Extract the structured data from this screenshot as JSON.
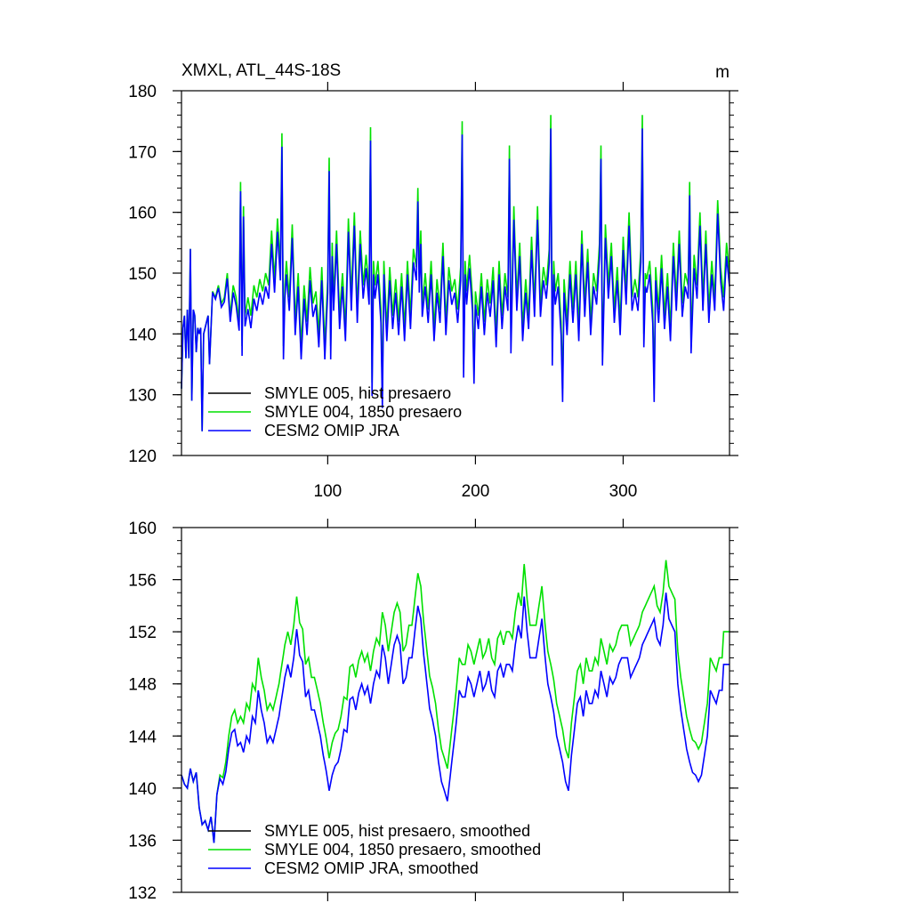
{
  "chart_data": [
    {
      "type": "line",
      "title": "XMXL, ATL_44S-18S",
      "units": "m",
      "ylim": [
        120,
        180
      ],
      "xlim": [
        1,
        372
      ],
      "y_ticks": [
        120,
        130,
        140,
        150,
        160,
        170,
        180
      ],
      "x_ticks": [
        100,
        200,
        300
      ],
      "legend_position": "bottom-left",
      "series": [
        {
          "name": "SMYLE 005, hist presaero",
          "color": "#000000"
        },
        {
          "name": "SMYLE 004, 1850 presaero",
          "color": "#00e000"
        },
        {
          "name": "CESM2 OMIP JRA",
          "color": "#0000ff"
        }
      ],
      "anchors": {
        "x": [
          1,
          2,
          3,
          4,
          5,
          6,
          7,
          8,
          9,
          10,
          11,
          12,
          13,
          14,
          15,
          16,
          17,
          18,
          19,
          20,
          22,
          24,
          26,
          28,
          30,
          32,
          34,
          36,
          38,
          40,
          41,
          42,
          43,
          44,
          46,
          48,
          50,
          52,
          54,
          56,
          58,
          60,
          62,
          64,
          66,
          68,
          69,
          70,
          71,
          72,
          74,
          76,
          78,
          80,
          82,
          84,
          86,
          88,
          90,
          92,
          94,
          96,
          98,
          100,
          101,
          102,
          103,
          104,
          106,
          108,
          110,
          112,
          114,
          116,
          118,
          120,
          122,
          124,
          126,
          128,
          129,
          130,
          131,
          132,
          134,
          136,
          137,
          138,
          140,
          142,
          144,
          146,
          148,
          150,
          152,
          154,
          156,
          158,
          160,
          161,
          162,
          163,
          164,
          166,
          168,
          170,
          172,
          174,
          176,
          178,
          180,
          182,
          184,
          186,
          188,
          190,
          191,
          192,
          193,
          194,
          196,
          198,
          199,
          200,
          202,
          204,
          206,
          208,
          210,
          212,
          214,
          216,
          218,
          220,
          222,
          223,
          224,
          226,
          228,
          230,
          232,
          234,
          236,
          238,
          240,
          242,
          244,
          246,
          248,
          250,
          251,
          252,
          253,
          254,
          256,
          258,
          259,
          260,
          262,
          264,
          266,
          268,
          270,
          272,
          274,
          276,
          278,
          280,
          282,
          284,
          285,
          286,
          288,
          290,
          292,
          294,
          296,
          298,
          300,
          302,
          304,
          306,
          308,
          310,
          312,
          313,
          314,
          315,
          316,
          318,
          320,
          321,
          322,
          324,
          326,
          328,
          330,
          332,
          334,
          336,
          338,
          340,
          342,
          344,
          345,
          346,
          348,
          350,
          352,
          354,
          356,
          358,
          360,
          362,
          364,
          366,
          368,
          370,
          372
        ],
        "green": [
          131,
          141,
          143,
          136,
          144,
          136,
          154,
          129,
          144,
          143,
          137,
          141,
          140,
          141,
          124,
          140,
          141,
          142,
          143,
          135,
          147,
          146,
          148,
          145,
          146,
          150,
          143,
          148,
          146,
          142,
          165,
          138,
          161,
          143,
          146,
          143,
          148,
          146,
          149,
          147,
          150,
          148,
          157,
          149,
          159,
          151,
          173,
          138,
          148,
          152,
          146,
          158,
          142,
          150,
          138,
          148,
          142,
          151,
          145,
          147,
          140,
          151,
          138,
          149,
          169,
          138,
          155,
          146,
          157,
          143,
          150,
          141,
          159,
          146,
          160,
          144,
          157,
          148,
          153,
          147,
          174,
          132,
          152,
          148,
          152,
          144,
          130,
          152,
          141,
          151,
          143,
          149,
          142,
          150,
          141,
          152,
          143,
          154,
          151,
          164,
          149,
          157,
          145,
          150,
          144,
          152,
          141,
          149,
          144,
          155,
          142,
          151,
          147,
          149,
          144,
          151,
          175,
          135,
          152,
          147,
          153,
          146,
          134,
          147,
          143,
          150,
          142,
          149,
          145,
          151,
          140,
          152,
          143,
          150,
          146,
          171,
          139,
          161,
          146,
          155,
          141,
          149,
          143,
          156,
          145,
          161,
          145,
          151,
          148,
          154,
          176,
          137,
          152,
          147,
          150,
          142,
          131,
          149,
          142,
          152,
          144,
          152,
          141,
          157,
          145,
          154,
          142,
          150,
          147,
          155,
          171,
          137,
          158,
          148,
          155,
          144,
          151,
          142,
          156,
          147,
          160,
          146,
          149,
          146,
          154,
          176,
          140,
          150,
          149,
          152,
          144,
          131,
          151,
          144,
          153,
          143,
          150,
          141,
          155,
          146,
          157,
          145,
          150,
          148,
          165,
          139,
          153,
          148,
          160,
          146,
          157,
          144,
          152,
          146,
          162,
          151,
          146,
          155,
          150
        ]
      },
      "fine_structure": {
        "green_offset_over_blue": -2.2
      },
      "legend": {
        "entries": [
          "SMYLE 005, hist presaero",
          "SMYLE 004, 1850 presaero",
          "CESM2 OMIP JRA"
        ]
      }
    },
    {
      "type": "line",
      "title": "",
      "units": "",
      "ylim": [
        132,
        160
      ],
      "xlim": [
        1,
        372
      ],
      "y_ticks": [
        132,
        136,
        140,
        144,
        148,
        152,
        156,
        160
      ],
      "x_ticks": [
        100,
        200,
        300
      ],
      "legend_position": "bottom-left",
      "series": [
        {
          "name": "SMYLE 005, hist presaero, smoothed",
          "color": "#000000"
        },
        {
          "name": "SMYLE 004, 1850 presaero, smoothed",
          "color": "#00e000"
        },
        {
          "name": "CESM2 OMIP JRA, smoothed",
          "color": "#0000ff"
        }
      ],
      "anchors": {
        "x": [
          1,
          3,
          5,
          7,
          9,
          11,
          13,
          15,
          17,
          19,
          21,
          23,
          25,
          27,
          29,
          31,
          33,
          35,
          37,
          39,
          41,
          43,
          45,
          47,
          49,
          51,
          53,
          55,
          57,
          59,
          61,
          63,
          65,
          67,
          69,
          71,
          73,
          75,
          77,
          79,
          81,
          83,
          85,
          87,
          89,
          91,
          93,
          95,
          97,
          99,
          101,
          103,
          105,
          107,
          109,
          111,
          113,
          115,
          117,
          119,
          121,
          123,
          125,
          127,
          129,
          131,
          133,
          135,
          137,
          139,
          141,
          143,
          145,
          147,
          149,
          151,
          153,
          155,
          157,
          159,
          161,
          163,
          165,
          167,
          169,
          171,
          173,
          175,
          177,
          179,
          181,
          183,
          185,
          187,
          189,
          191,
          193,
          195,
          197,
          199,
          201,
          203,
          205,
          207,
          209,
          211,
          213,
          215,
          217,
          219,
          221,
          223,
          225,
          227,
          229,
          231,
          233,
          235,
          237,
          239,
          241,
          243,
          245,
          247,
          249,
          251,
          253,
          255,
          257,
          259,
          261,
          263,
          265,
          267,
          269,
          271,
          273,
          275,
          277,
          279,
          281,
          283,
          285,
          287,
          289,
          291,
          293,
          295,
          297,
          299,
          301,
          303,
          305,
          307,
          309,
          311,
          313,
          315,
          317,
          319,
          321,
          323,
          325,
          327,
          329,
          331,
          333,
          335,
          337,
          339,
          341,
          343,
          345,
          347,
          349,
          351,
          353,
          355,
          357,
          359,
          361,
          363,
          365,
          367
        ],
        "green": [
          141,
          140.3,
          140,
          141.5,
          140.5,
          141.2,
          138.5,
          137.2,
          137.5,
          136.8,
          137.8,
          135.8,
          139.5,
          141,
          140.8,
          142,
          144,
          145.5,
          146,
          145,
          145.5,
          145,
          146.5,
          146,
          148,
          147.5,
          150,
          148.5,
          147.5,
          146,
          146.5,
          146,
          147,
          148,
          149.5,
          151,
          152,
          151,
          152.5,
          154.7,
          152.7,
          152.2,
          149.5,
          150,
          148.5,
          148.5,
          147.5,
          146.5,
          145,
          143.8,
          142.3,
          143.5,
          144.2,
          144.5,
          145.5,
          147,
          146.8,
          149.3,
          149.5,
          148.5,
          149.8,
          150.5,
          149.7,
          150.3,
          149,
          150.5,
          151.5,
          151,
          153.5,
          152.5,
          150.5,
          152,
          153.5,
          154.2,
          153.5,
          150.5,
          151,
          152.5,
          152.5,
          154.5,
          156.5,
          155.5,
          152.7,
          150.7,
          148.6,
          147.7,
          146.5,
          144.5,
          143,
          142.3,
          141.5,
          143.5,
          145.5,
          147.5,
          150,
          149.5,
          149.5,
          151,
          150.5,
          149.5,
          150.5,
          151.5,
          150,
          150.5,
          151.5,
          150,
          149.5,
          151.5,
          152,
          151,
          152,
          152,
          151.5,
          153.5,
          155,
          154,
          157.2,
          154.5,
          152.5,
          152.5,
          152.5,
          154,
          155.5,
          152.7,
          150.5,
          149.5,
          148.3,
          146.5,
          145.5,
          144.5,
          143,
          142.3,
          145,
          147,
          149,
          149.5,
          148,
          150,
          149,
          149,
          150,
          149.5,
          151.5,
          150.5,
          149.5,
          151,
          150.5,
          151,
          152,
          152.5,
          152.5,
          152.5,
          151,
          151.5,
          152,
          152.5,
          153.5,
          154,
          154.5,
          155,
          155.5,
          154,
          153.5,
          155,
          157.5,
          155.5,
          155,
          154.5,
          150.5,
          148.5,
          147,
          145.5,
          144.5,
          143.7,
          143.5,
          143,
          143.5,
          145,
          146.5,
          150,
          149.5,
          149,
          150,
          150,
          152,
          153.5,
          152,
          152.5,
          150.5,
          152.5,
          153.5,
          152
        ]
      },
      "fine_structure": {
        "green_offset_over_blue": -2.5
      },
      "legend": {
        "entries": [
          "SMYLE 005, hist presaero, smoothed",
          "SMYLE 004, 1850 presaero, smoothed",
          "CESM2 OMIP JRA, smoothed"
        ]
      }
    }
  ]
}
